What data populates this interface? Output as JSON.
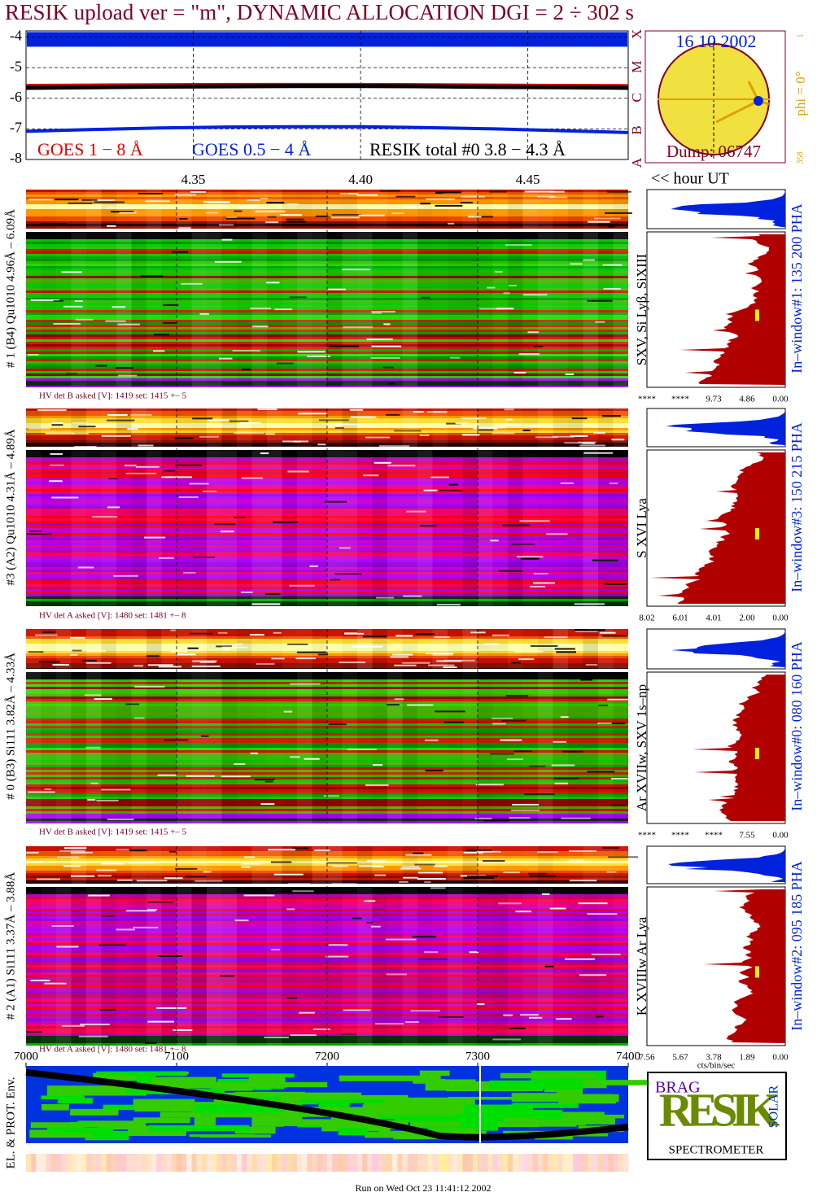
{
  "title": "RESIK upload ver = \"m\", DYNAMIC ALLOCATION  DGI =   2 ÷ 302 s",
  "chart_data": {
    "type": "line",
    "xlabel": "<< hour UT",
    "x": [
      4.3,
      4.32,
      4.34,
      4.36,
      4.38,
      4.4,
      4.42,
      4.44,
      4.46,
      4.48
    ],
    "xlim": [
      4.3,
      4.48
    ],
    "xticks": [
      4.35,
      {
        "value": 4.4,
        "label": "4.40"
      },
      4.45
    ],
    "ylim": [
      -8,
      -3.8
    ],
    "yticks": [
      -4,
      -5,
      -6,
      -7,
      -8
    ],
    "grid": true,
    "series": [
      {
        "name": "GOES 1 − 8 Å",
        "color": "#e00000",
        "values": [
          -5.58,
          -5.57,
          -5.56,
          -5.55,
          -5.55,
          -5.55,
          -5.56,
          -5.57,
          -5.58,
          -5.59
        ]
      },
      {
        "name": "GOES 0.5 − 4 Å",
        "color": "#0022dd",
        "values": [
          -7.08,
          -7.02,
          -6.97,
          -6.94,
          -6.93,
          -6.93,
          -6.96,
          -7.0,
          -7.06,
          -7.12
        ]
      },
      {
        "name": "RESIK total #0  3.8 − 4.3 Å",
        "color": "#000000",
        "values": [
          -5.66,
          -5.64,
          -5.62,
          -5.61,
          -5.6,
          -5.6,
          -5.61,
          -5.63,
          -5.64,
          -5.66
        ]
      }
    ]
  },
  "goes_classes": [
    "A",
    "B",
    "C",
    "M",
    "X"
  ],
  "sun": {
    "date": "16 10 2002",
    "phi": "phi =  0°",
    "dump": "Dump: 06747",
    "angle": "358",
    "tick": "1"
  },
  "detectors": [
    {
      "label": "# 1 (B4) Qu1010 4.96Å – 6.09Å",
      "line": "SXV, Si Lyβ, SiXIII",
      "window": "In–window#1:  135 200 PHA",
      "hv": "HV det B asked [V]:  1419 set:  1415  +–    5",
      "scale": [
        "****",
        "****",
        "9.73",
        "4.86",
        "0.00"
      ],
      "theme": "green"
    },
    {
      "label": "#3 (A2) Qu1010  4.31Å – 4.89Å",
      "line": "S XVI Lya",
      "window": "In–window#3:  150 215 PHA",
      "hv": "HV det A asked [V]:  1480 set:  1481  +–    8",
      "scale": [
        "8.02",
        "6.01",
        "4.01",
        "2.00",
        "0.00"
      ],
      "theme": "magenta"
    },
    {
      "label": "# 0 (B3) Si111  3.82Å – 4.33Å",
      "line": "Ar XVIIw,  SXV 1s–np",
      "window": "In–window#0:  080 160 PHA",
      "hv": "HV det B asked [V]:  1419 set:  1415  +–    5",
      "scale": [
        "****",
        "****",
        "****",
        "7.55",
        "0.00"
      ],
      "theme": "green"
    },
    {
      "label": "# 2 (A1) Si111  3.37Å – 3.88Å",
      "line": "K XVIIIw   Ar Lya",
      "window": "In–window#2:  095 185 PHA",
      "hv": "HV det A asked [V]:  1480 set:  1481  +–    8",
      "scale": [
        "7.56",
        "5.67",
        "3.78",
        "1.89",
        "0.00"
      ],
      "theme": "magenta"
    }
  ],
  "env": {
    "label": "EL. & PROT. Env.",
    "xlim": [
      7000,
      7400
    ],
    "xticks": [
      7000,
      7100,
      7200,
      7300,
      7400
    ]
  },
  "units": "cts/bin/sec",
  "logo": {
    "top": "BRAG",
    "side": "SOLAR",
    "text": "SPECTROMETER",
    "main": "RESIK"
  },
  "footer": "Run on Wed Oct 23 11:41:12 2002"
}
